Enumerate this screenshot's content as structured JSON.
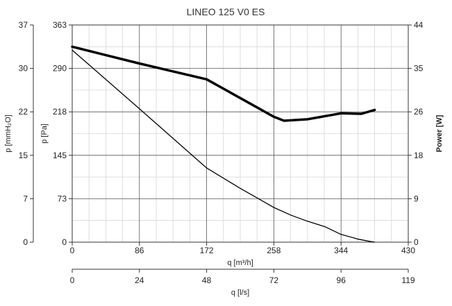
{
  "chart_data": {
    "type": "line",
    "title": "LINEO 125 V0 ES",
    "axes": {
      "x_bottom": {
        "label": "q [m³/h]",
        "min": 0,
        "max": 430,
        "ticks": [
          "0",
          "86",
          "172",
          "258",
          "344",
          "430"
        ]
      },
      "x_secondary": {
        "label": "q [l/s]",
        "min": 0,
        "max": 119,
        "ticks": [
          "0",
          "24",
          "48",
          "72",
          "96",
          "119"
        ]
      },
      "y_left_outer": {
        "label": "p [mmH₂O]",
        "min": 0,
        "max": 37,
        "ticks": [
          "0",
          "7",
          "15",
          "22",
          "30",
          "37"
        ]
      },
      "y_left_inner": {
        "label": "p [Pa]",
        "min": 0,
        "max": 363,
        "ticks": [
          "0",
          "73",
          "145",
          "218",
          "290",
          "363"
        ]
      },
      "y_right": {
        "label": "Power [W]",
        "min": 0,
        "max": 44,
        "ticks": [
          "0",
          "9",
          "18",
          "26",
          "35",
          "44"
        ]
      }
    },
    "grid": true,
    "series": [
      {
        "axis": "y_right",
        "color": "#000000",
        "style": "thick",
        "x": [
          0,
          43,
          86,
          129,
          172,
          215,
          258,
          271,
          301,
          344,
          370,
          387
        ],
        "y": [
          39.6,
          37.9,
          36.2,
          34.6,
          33.0,
          29.2,
          25.4,
          24.6,
          24.9,
          26.1,
          26.0,
          26.8
        ]
      },
      {
        "axis": "y_left_inner",
        "color": "#000000",
        "style": "thin",
        "x": [
          0,
          86,
          172,
          215,
          258,
          280,
          301,
          323,
          344,
          366,
          378,
          387
        ],
        "y": [
          321,
          223,
          124,
          90,
          58,
          45,
          35,
          26,
          13,
          5,
          2,
          0
        ]
      }
    ]
  }
}
